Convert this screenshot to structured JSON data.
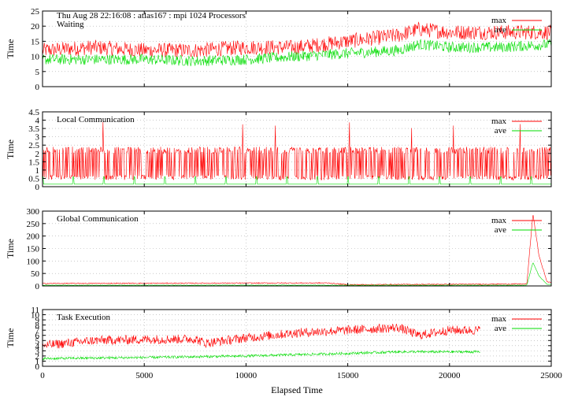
{
  "header_text": "Thu Aug 28 22:16:08 : atlas167 : mpi 1024 Processors",
  "colors": {
    "max": "#ff0000",
    "ave": "#00dd00",
    "grid": "#aaaaaa",
    "frame": "#000000"
  },
  "chart_data": [
    {
      "type": "line",
      "title": "Waiting",
      "xlabel": "",
      "ylabel": "Time",
      "xlim": [
        0,
        25000
      ],
      "ylim": [
        0,
        25
      ],
      "yticks": [
        0,
        5,
        10,
        15,
        20,
        25
      ],
      "xticks": [
        0,
        5000,
        10000,
        15000,
        20000,
        25000
      ],
      "show_xtick_labels": false,
      "grid": "horizontal dotted",
      "legend": "top-right",
      "series": [
        {
          "name": "max",
          "points": [
            [
              0,
              12
            ],
            [
              2500,
              13
            ],
            [
              5000,
              12
            ],
            [
              7500,
              12
            ],
            [
              10000,
              13
            ],
            [
              12500,
              13
            ],
            [
              15000,
              15
            ],
            [
              17500,
              17
            ],
            [
              18500,
              19
            ],
            [
              20000,
              18
            ],
            [
              22500,
              18
            ],
            [
              25000,
              18
            ]
          ],
          "noise": 2.5
        },
        {
          "name": "ave",
          "points": [
            [
              0,
              9
            ],
            [
              2500,
              9
            ],
            [
              5000,
              9
            ],
            [
              7500,
              8.5
            ],
            [
              10000,
              9
            ],
            [
              12500,
              10
            ],
            [
              15000,
              11
            ],
            [
              17500,
              12
            ],
            [
              18500,
              14
            ],
            [
              20000,
              13
            ],
            [
              22500,
              13
            ],
            [
              25000,
              14
            ]
          ],
          "noise": 1.8
        }
      ]
    },
    {
      "type": "line",
      "title": "Local Communication",
      "xlabel": "",
      "ylabel": "Time",
      "xlim": [
        0,
        25000
      ],
      "ylim": [
        0,
        4.5
      ],
      "yticks": [
        0,
        0.5,
        1,
        1.5,
        2,
        2.5,
        3,
        3.5,
        4,
        4.5
      ],
      "xticks": [
        0,
        5000,
        10000,
        15000,
        20000,
        25000
      ],
      "show_xtick_labels": false,
      "grid": "horizontal dotted",
      "legend": "top-right",
      "series": [
        {
          "name": "max",
          "points": [
            [
              0,
              0.5
            ],
            [
              25000,
              0.7
            ]
          ],
          "spikes": {
            "low": 0.4,
            "high": 2.4,
            "max_peak": 4.0
          }
        },
        {
          "name": "ave",
          "points": [
            [
              0,
              0.15
            ],
            [
              25000,
              0.15
            ]
          ],
          "spike_interval": 1500,
          "spike_height": 0.6
        }
      ]
    },
    {
      "type": "line",
      "title": "Global Communication",
      "xlabel": "",
      "ylabel": "Time",
      "xlim": [
        0,
        25000
      ],
      "ylim": [
        0,
        300
      ],
      "yticks": [
        0,
        50,
        100,
        150,
        200,
        250,
        300
      ],
      "xticks": [
        0,
        5000,
        10000,
        15000,
        20000,
        25000
      ],
      "show_xtick_labels": false,
      "grid": "horizontal dotted",
      "legend": "top-right",
      "series": [
        {
          "name": "max",
          "points": [
            [
              0,
              10
            ],
            [
              14000,
              12
            ],
            [
              15000,
              5
            ],
            [
              23800,
              8
            ],
            [
              24100,
              290
            ],
            [
              24400,
              120
            ],
            [
              24800,
              15
            ],
            [
              25000,
              15
            ]
          ],
          "noise": 2
        },
        {
          "name": "ave",
          "points": [
            [
              0,
              3
            ],
            [
              23800,
              3
            ],
            [
              24100,
              95
            ],
            [
              24400,
              40
            ],
            [
              24800,
              6
            ],
            [
              25000,
              6
            ]
          ],
          "noise": 1
        }
      ]
    },
    {
      "type": "line",
      "title": "Task Execution",
      "xlabel": "Elapsed Time",
      "ylabel": "Time",
      "xlim": [
        0,
        25000
      ],
      "ylim": [
        0,
        11
      ],
      "yticks": [
        0,
        1,
        2,
        3,
        4,
        5,
        6,
        7,
        8,
        9,
        10,
        11
      ],
      "xticks": [
        0,
        5000,
        10000,
        15000,
        20000,
        25000
      ],
      "show_xtick_labels": true,
      "grid": "horizontal dotted",
      "legend": "top-right",
      "series": [
        {
          "name": "max",
          "points": [
            [
              0,
              4
            ],
            [
              2500,
              5
            ],
            [
              5000,
              5.2
            ],
            [
              7500,
              5.3
            ],
            [
              8000,
              4.5
            ],
            [
              10000,
              5.5
            ],
            [
              12500,
              6.5
            ],
            [
              15000,
              7
            ],
            [
              17500,
              7.5
            ],
            [
              18500,
              6
            ],
            [
              20000,
              7
            ],
            [
              21500,
              7
            ]
          ],
          "noise": 0.9
        },
        {
          "name": "ave",
          "points": [
            [
              0,
              1.5
            ],
            [
              5000,
              1.7
            ],
            [
              10000,
              2
            ],
            [
              15000,
              2.5
            ],
            [
              17500,
              2.8
            ],
            [
              21500,
              2.8
            ]
          ],
          "noise": 0.25
        }
      ]
    }
  ]
}
